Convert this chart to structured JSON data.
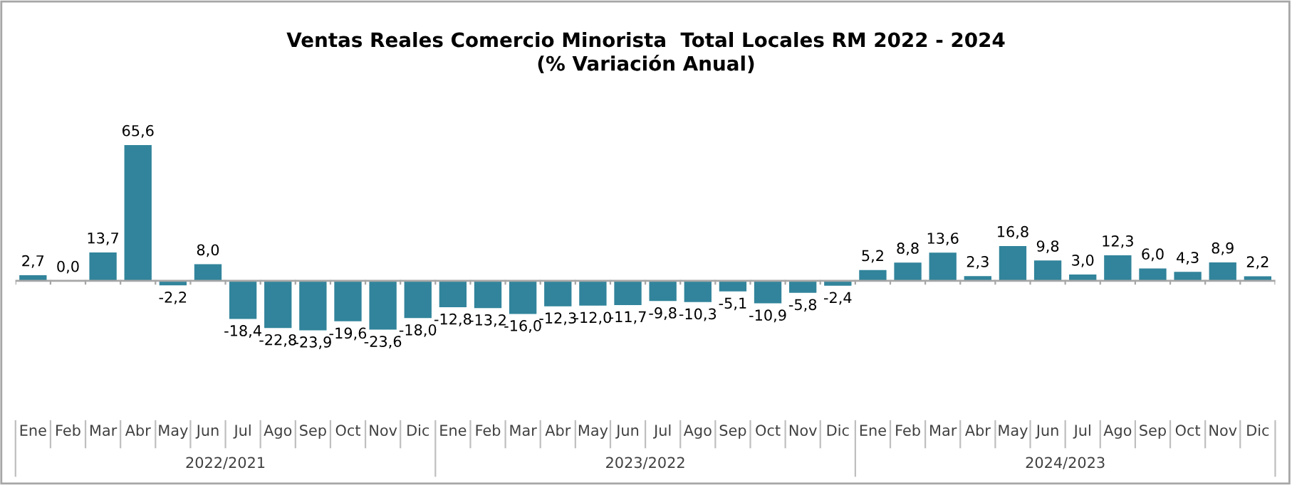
{
  "chart_data": {
    "type": "bar",
    "title": "Ventas Reales Comercio Minorista  Total Locales RM 2022 - 2024\n(% Variación Anual)",
    "categories": [
      "Ene",
      "Feb",
      "Mar",
      "Abr",
      "May",
      "Jun",
      "Jul",
      "Ago",
      "Sep",
      "Oct",
      "Nov",
      "Dic",
      "Ene",
      "Feb",
      "Mar",
      "Abr",
      "May",
      "Jun",
      "Jul",
      "Ago",
      "Sep",
      "Oct",
      "Nov",
      "Dic",
      "Ene",
      "Feb",
      "Mar",
      "Abr",
      "May",
      "Jun",
      "Jul",
      "Ago",
      "Sep",
      "Oct",
      "Nov",
      "Dic"
    ],
    "values": [
      2.7,
      0.0,
      13.7,
      65.6,
      -2.2,
      8.0,
      -18.4,
      -22.8,
      -23.9,
      -19.6,
      -23.6,
      -18.0,
      -12.8,
      -13.2,
      -16.0,
      -12.3,
      -12.0,
      -11.7,
      -9.8,
      -10.3,
      -5.1,
      -10.9,
      -5.8,
      -2.4,
      5.2,
      8.8,
      13.6,
      2.3,
      16.8,
      9.8,
      3.0,
      12.3,
      6.0,
      4.3,
      8.9,
      2.2
    ],
    "value_labels": [
      "2,7",
      "0,0",
      "13,7",
      "65,6",
      "-2,2",
      "8,0",
      "-18,4",
      "-22,8",
      "-23,9",
      "-19,6",
      "-23,6",
      "-18,0",
      "-12,8",
      "-13,2",
      "-16,0",
      "-12,3",
      "-12,0",
      "-11,7",
      "-9,8",
      "-10,3",
      "-5,1",
      "-10,9",
      "-5,8",
      "-2,4",
      "5,2",
      "8,8",
      "13,6",
      "2,3",
      "16,8",
      "9,8",
      "3,0",
      "12,3",
      "6,0",
      "4,3",
      "8,9",
      "2,2"
    ],
    "color": "#31849b",
    "annotations": [
      "2022/2021",
      "2023/2022",
      "2024/2023"
    ],
    "grid": false,
    "legend": false
  }
}
